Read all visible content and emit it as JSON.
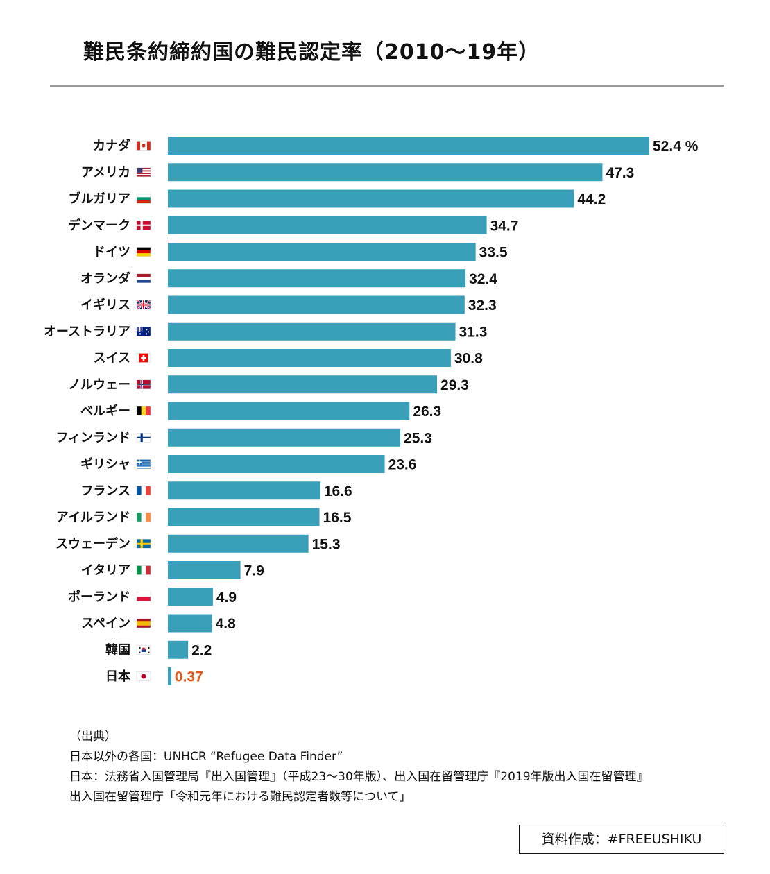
{
  "title": "難民条約締約国の難民認定率（2010〜19年）",
  "chart_data": {
    "type": "bar",
    "orientation": "horizontal",
    "title": "難民条約締約国の難民認定率（2010〜19年）",
    "unit": "%",
    "highlight_category": "日本",
    "highlight_color": "#e05a1c",
    "bar_color": "#3a9fb9",
    "categories": [
      "カナダ",
      "アメリカ",
      "ブルガリア",
      "デンマーク",
      "ドイツ",
      "オランダ",
      "イギリス",
      "オーストラリア",
      "スイス",
      "ノルウェー",
      "ベルギー",
      "フィンランド",
      "ギリシャ",
      "フランス",
      "アイルランド",
      "スウェーデン",
      "イタリア",
      "ポーランド",
      "スペイン",
      "韓国",
      "日本"
    ],
    "flags": [
      "flag-canada-icon",
      "flag-usa-icon",
      "flag-bulgaria-icon",
      "flag-denmark-icon",
      "flag-germany-icon",
      "flag-netherlands-icon",
      "flag-uk-icon",
      "flag-australia-icon",
      "flag-switzerland-icon",
      "flag-norway-icon",
      "flag-belgium-icon",
      "flag-finland-icon",
      "flag-greece-icon",
      "flag-france-icon",
      "flag-ireland-icon",
      "flag-sweden-icon",
      "flag-italy-icon",
      "flag-poland-icon",
      "flag-spain-icon",
      "flag-korea-icon",
      "flag-japan-icon"
    ],
    "values": [
      52.4,
      47.3,
      44.2,
      34.7,
      33.5,
      32.4,
      32.3,
      31.3,
      30.8,
      29.3,
      26.3,
      25.3,
      23.6,
      16.6,
      16.5,
      15.3,
      7.9,
      4.9,
      4.8,
      2.2,
      0.37
    ],
    "value_labels": [
      "52.4 %",
      "47.3",
      "44.2",
      "34.7",
      "33.5",
      "32.4",
      "32.3",
      "31.3",
      "30.8",
      "29.3",
      "26.3",
      "25.3",
      "23.6",
      "16.6",
      "16.5",
      "15.3",
      "7.9",
      "4.9",
      "4.8",
      "2.2",
      "0.37"
    ],
    "grid": false,
    "legend": "none"
  },
  "source": {
    "heading": "（出典）",
    "line1": "日本以外の各国：UNHCR “Refugee Data Finder”",
    "line2": "日本：法務省入国管理局『出入国管理』（平成23〜30年版）、出入国在留管理庁『2019年版出入国在留管理』",
    "line3": "出入国在留管理庁「令和元年における難民認定者数等について」"
  },
  "credit": "資料作成：#FREEUSHIKU"
}
